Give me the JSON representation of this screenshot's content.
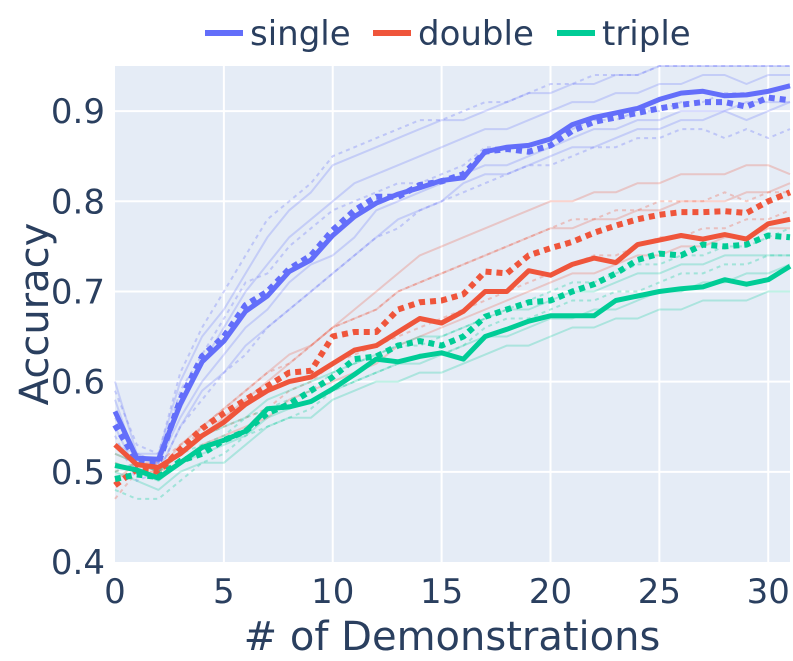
{
  "chart_data": {
    "type": "line",
    "xlabel": "# of Demonstrations",
    "ylabel": "Accuracy",
    "xlim": [
      0,
      31
    ],
    "ylim": [
      0.4,
      0.95
    ],
    "x_ticks": [
      0,
      5,
      10,
      15,
      20,
      25,
      30
    ],
    "y_ticks": [
      0.4,
      0.5,
      0.6,
      0.7,
      0.8,
      0.9
    ],
    "grid": true,
    "legend_position": "top",
    "x": [
      0,
      1,
      2,
      3,
      4,
      5,
      6,
      7,
      8,
      9,
      10,
      11,
      12,
      13,
      14,
      15,
      16,
      17,
      18,
      19,
      20,
      21,
      22,
      23,
      24,
      25,
      26,
      27,
      28,
      29,
      30,
      31
    ],
    "series": [
      {
        "name": "single",
        "color": "#636efa",
        "values": [
          0.567,
          0.515,
          0.514,
          0.575,
          0.622,
          0.645,
          0.678,
          0.695,
          0.722,
          0.735,
          0.762,
          0.783,
          0.798,
          0.808,
          0.815,
          0.823,
          0.826,
          0.855,
          0.86,
          0.862,
          0.869,
          0.885,
          0.893,
          0.898,
          0.903,
          0.913,
          0.92,
          0.922,
          0.917,
          0.918,
          0.922,
          0.928
        ],
        "dotted_values": [
          0.552,
          0.512,
          0.51,
          0.58,
          0.628,
          0.65,
          0.685,
          0.7,
          0.725,
          0.74,
          0.768,
          0.79,
          0.805,
          0.805,
          0.818,
          0.822,
          0.83,
          0.855,
          0.858,
          0.855,
          0.862,
          0.878,
          0.888,
          0.893,
          0.898,
          0.903,
          0.907,
          0.91,
          0.91,
          0.905,
          0.915,
          0.912
        ],
        "runs": [
          [
            0.6,
            0.52,
            0.52,
            0.6,
            0.65,
            0.68,
            0.72,
            0.76,
            0.79,
            0.81,
            0.84,
            0.85,
            0.86,
            0.87,
            0.88,
            0.89,
            0.89,
            0.9,
            0.91,
            0.92,
            0.92,
            0.93,
            0.93,
            0.94,
            0.94,
            0.95,
            0.95,
            0.95,
            0.95,
            0.95,
            0.95,
            0.95
          ],
          [
            0.55,
            0.5,
            0.51,
            0.56,
            0.6,
            0.63,
            0.66,
            0.68,
            0.71,
            0.73,
            0.74,
            0.76,
            0.79,
            0.8,
            0.81,
            0.82,
            0.83,
            0.84,
            0.84,
            0.85,
            0.86,
            0.87,
            0.88,
            0.88,
            0.89,
            0.89,
            0.9,
            0.9,
            0.9,
            0.91,
            0.91,
            0.91
          ],
          [
            0.58,
            0.51,
            0.5,
            0.55,
            0.59,
            0.61,
            0.64,
            0.66,
            0.68,
            0.7,
            0.72,
            0.74,
            0.76,
            0.78,
            0.79,
            0.8,
            0.82,
            0.83,
            0.83,
            0.84,
            0.85,
            0.86,
            0.86,
            0.87,
            0.88,
            0.88,
            0.89,
            0.89,
            0.9,
            0.89,
            0.9,
            0.91
          ],
          [
            0.53,
            0.52,
            0.51,
            0.57,
            0.62,
            0.66,
            0.7,
            0.73,
            0.76,
            0.78,
            0.8,
            0.82,
            0.83,
            0.84,
            0.85,
            0.86,
            0.87,
            0.88,
            0.88,
            0.89,
            0.9,
            0.91,
            0.91,
            0.92,
            0.92,
            0.93,
            0.93,
            0.94,
            0.94,
            0.93,
            0.94,
            0.94
          ]
        ],
        "dotted_runs": [
          [
            0.59,
            0.53,
            0.52,
            0.61,
            0.66,
            0.7,
            0.74,
            0.78,
            0.8,
            0.82,
            0.85,
            0.86,
            0.87,
            0.88,
            0.89,
            0.89,
            0.9,
            0.91,
            0.91,
            0.92,
            0.93,
            0.93,
            0.94,
            0.94,
            0.94,
            0.95,
            0.95,
            0.95,
            0.95,
            0.95,
            0.95,
            0.95
          ],
          [
            0.54,
            0.49,
            0.5,
            0.55,
            0.58,
            0.61,
            0.63,
            0.66,
            0.68,
            0.7,
            0.72,
            0.74,
            0.76,
            0.77,
            0.79,
            0.8,
            0.81,
            0.82,
            0.83,
            0.84,
            0.84,
            0.85,
            0.86,
            0.86,
            0.87,
            0.87,
            0.88,
            0.88,
            0.87,
            0.88,
            0.87,
            0.88
          ],
          [
            0.56,
            0.52,
            0.51,
            0.59,
            0.63,
            0.67,
            0.71,
            0.72,
            0.75,
            0.77,
            0.79,
            0.8,
            0.81,
            0.82,
            0.82,
            0.83,
            0.84,
            0.86,
            0.86,
            0.86,
            0.87,
            0.88,
            0.89,
            0.89,
            0.9,
            0.9,
            0.91,
            0.91,
            0.92,
            0.92,
            0.92,
            0.93
          ]
        ]
      },
      {
        "name": "double",
        "color": "#ef553b",
        "values": [
          0.53,
          0.508,
          0.505,
          0.52,
          0.54,
          0.555,
          0.575,
          0.59,
          0.6,
          0.605,
          0.62,
          0.635,
          0.64,
          0.655,
          0.67,
          0.665,
          0.678,
          0.7,
          0.7,
          0.723,
          0.718,
          0.73,
          0.737,
          0.732,
          0.752,
          0.757,
          0.762,
          0.758,
          0.763,
          0.758,
          0.775,
          0.78
        ],
        "dotted_values": [
          0.485,
          0.503,
          0.5,
          0.525,
          0.548,
          0.565,
          0.58,
          0.595,
          0.61,
          0.612,
          0.65,
          0.655,
          0.655,
          0.68,
          0.688,
          0.69,
          0.697,
          0.722,
          0.72,
          0.74,
          0.748,
          0.755,
          0.765,
          0.773,
          0.78,
          0.785,
          0.788,
          0.788,
          0.789,
          0.787,
          0.8,
          0.81
        ],
        "runs": [
          [
            0.52,
            0.51,
            0.5,
            0.52,
            0.54,
            0.56,
            0.58,
            0.6,
            0.62,
            0.64,
            0.66,
            0.68,
            0.7,
            0.72,
            0.74,
            0.75,
            0.76,
            0.77,
            0.78,
            0.79,
            0.8,
            0.8,
            0.81,
            0.81,
            0.82,
            0.82,
            0.83,
            0.83,
            0.83,
            0.84,
            0.84,
            0.83
          ],
          [
            0.51,
            0.5,
            0.5,
            0.51,
            0.53,
            0.54,
            0.55,
            0.56,
            0.58,
            0.59,
            0.6,
            0.61,
            0.62,
            0.64,
            0.65,
            0.66,
            0.67,
            0.68,
            0.69,
            0.7,
            0.71,
            0.72,
            0.72,
            0.73,
            0.74,
            0.74,
            0.75,
            0.75,
            0.76,
            0.76,
            0.77,
            0.77
          ],
          [
            0.49,
            0.51,
            0.5,
            0.53,
            0.55,
            0.57,
            0.59,
            0.61,
            0.63,
            0.64,
            0.66,
            0.67,
            0.68,
            0.7,
            0.71,
            0.72,
            0.73,
            0.74,
            0.75,
            0.76,
            0.77,
            0.77,
            0.78,
            0.78,
            0.79,
            0.79,
            0.8,
            0.8,
            0.8,
            0.81,
            0.81,
            0.82
          ]
        ],
        "dotted_runs": [
          [
            0.47,
            0.5,
            0.5,
            0.52,
            0.55,
            0.57,
            0.59,
            0.61,
            0.62,
            0.64,
            0.66,
            0.67,
            0.68,
            0.7,
            0.71,
            0.72,
            0.73,
            0.74,
            0.75,
            0.76,
            0.77,
            0.78,
            0.78,
            0.79,
            0.79,
            0.8,
            0.8,
            0.8,
            0.81,
            0.8,
            0.81,
            0.81
          ],
          [
            0.5,
            0.51,
            0.51,
            0.53,
            0.54,
            0.55,
            0.56,
            0.57,
            0.59,
            0.6,
            0.62,
            0.63,
            0.64,
            0.65,
            0.66,
            0.67,
            0.68,
            0.69,
            0.7,
            0.71,
            0.72,
            0.73,
            0.74,
            0.74,
            0.75,
            0.76,
            0.76,
            0.77,
            0.77,
            0.78,
            0.78,
            0.79
          ]
        ]
      },
      {
        "name": "triple",
        "color": "#00cc96",
        "values": [
          0.507,
          0.502,
          0.493,
          0.51,
          0.527,
          0.535,
          0.545,
          0.57,
          0.572,
          0.578,
          0.592,
          0.608,
          0.625,
          0.622,
          0.628,
          0.632,
          0.625,
          0.65,
          0.658,
          0.667,
          0.673,
          0.673,
          0.673,
          0.69,
          0.695,
          0.7,
          0.703,
          0.705,
          0.713,
          0.708,
          0.713,
          0.728
        ],
        "dotted_values": [
          0.492,
          0.497,
          0.494,
          0.512,
          0.52,
          0.535,
          0.545,
          0.565,
          0.575,
          0.59,
          0.605,
          0.625,
          0.628,
          0.64,
          0.645,
          0.64,
          0.65,
          0.672,
          0.68,
          0.688,
          0.69,
          0.7,
          0.708,
          0.72,
          0.735,
          0.742,
          0.74,
          0.752,
          0.75,
          0.752,
          0.762,
          0.76
        ],
        "runs": [
          [
            0.51,
            0.5,
            0.49,
            0.51,
            0.52,
            0.53,
            0.54,
            0.56,
            0.57,
            0.58,
            0.59,
            0.6,
            0.61,
            0.62,
            0.62,
            0.63,
            0.64,
            0.65,
            0.65,
            0.66,
            0.67,
            0.67,
            0.68,
            0.68,
            0.69,
            0.7,
            0.7,
            0.71,
            0.71,
            0.72,
            0.72,
            0.73
          ],
          [
            0.5,
            0.49,
            0.48,
            0.5,
            0.51,
            0.51,
            0.53,
            0.55,
            0.56,
            0.56,
            0.58,
            0.59,
            0.6,
            0.6,
            0.61,
            0.61,
            0.62,
            0.63,
            0.64,
            0.64,
            0.65,
            0.66,
            0.66,
            0.67,
            0.67,
            0.68,
            0.68,
            0.69,
            0.69,
            0.69,
            0.7,
            0.7
          ],
          [
            0.52,
            0.51,
            0.5,
            0.52,
            0.54,
            0.55,
            0.56,
            0.58,
            0.59,
            0.6,
            0.61,
            0.62,
            0.63,
            0.64,
            0.65,
            0.65,
            0.66,
            0.67,
            0.68,
            0.68,
            0.69,
            0.7,
            0.7,
            0.71,
            0.72,
            0.72,
            0.73,
            0.73,
            0.74,
            0.74,
            0.74,
            0.74
          ]
        ],
        "dotted_runs": [
          [
            0.48,
            0.47,
            0.47,
            0.49,
            0.51,
            0.52,
            0.54,
            0.55,
            0.56,
            0.57,
            0.59,
            0.6,
            0.61,
            0.62,
            0.63,
            0.63,
            0.64,
            0.66,
            0.67,
            0.67,
            0.68,
            0.69,
            0.69,
            0.7,
            0.7,
            0.71,
            0.72,
            0.72,
            0.73,
            0.73,
            0.74,
            0.74
          ],
          [
            0.5,
            0.51,
            0.5,
            0.52,
            0.53,
            0.54,
            0.56,
            0.57,
            0.58,
            0.59,
            0.61,
            0.62,
            0.63,
            0.64,
            0.64,
            0.65,
            0.66,
            0.67,
            0.68,
            0.69,
            0.7,
            0.71,
            0.71,
            0.72,
            0.73,
            0.73,
            0.74,
            0.74,
            0.75,
            0.75,
            0.76,
            0.77
          ]
        ]
      }
    ]
  }
}
